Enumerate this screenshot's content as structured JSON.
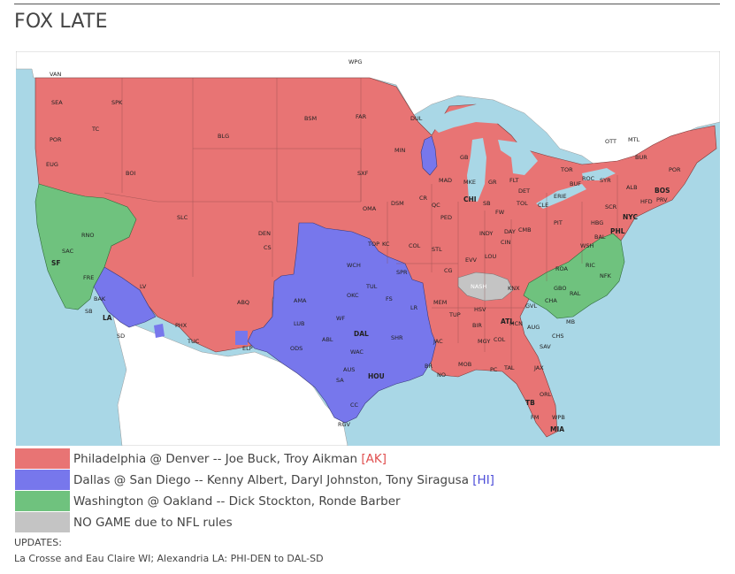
{
  "page": {
    "title": "FOX LATE"
  },
  "colors": {
    "red": "#e87474",
    "blue": "#7777ec",
    "green": "#6fc27e",
    "gray": "#c4c4c4",
    "water": "#a9d7e6",
    "land": "#ffffff",
    "border": "#6b4444"
  },
  "legend": [
    {
      "game": "Philadelphia @ Denver",
      "sep": " -- ",
      "announcers": "Joe Buck, Troy Aikman",
      "tag": "[AK]",
      "color": "#e87474"
    },
    {
      "game": "Dallas @ San Diego",
      "sep": " -- ",
      "announcers": "Kenny Albert, Daryl Johnston, Tony Siragusa",
      "tag": "[HI]",
      "color": "#7777ec"
    },
    {
      "game": "Washington @ Oakland",
      "sep": " -- ",
      "announcers": "Dick Stockton, Ronde Barber",
      "tag": "",
      "color": "#6fc27e"
    },
    {
      "game": "NO GAME due to NFL rules",
      "sep": "",
      "announcers": "",
      "tag": "",
      "color": "#c4c4c4"
    }
  ],
  "updates": {
    "heading": "UPDATES:",
    "text": "La Crosse and Eau Claire WI; Alexandria LA: PHI-DEN to DAL-SD"
  },
  "cities": [
    "VAN",
    "WPG",
    "SEA",
    "SPK",
    "POR",
    "TC",
    "EUG",
    "BOI",
    "BSM",
    "FAR",
    "DUL",
    "BLG",
    "OTT",
    "MTL",
    "MIN",
    "GB",
    "MAD",
    "MKE",
    "GR",
    "FLT",
    "DET",
    "TOR",
    "ROC",
    "SYR",
    "BUR",
    "POR",
    "BOS",
    "PRV",
    "ALB",
    "HFD",
    "NYC",
    "ERIE",
    "BUF",
    "CLE",
    "TOL",
    "SB",
    "FW",
    "CHI",
    "DSM",
    "QC",
    "CR",
    "OMA",
    "SXF",
    "SLC",
    "RNO",
    "SAC",
    "SF",
    "FRE",
    "BAK",
    "SB",
    "LA",
    "SD",
    "LV",
    "PHX",
    "TUC",
    "DEN",
    "CS",
    "ABQ",
    "ELP",
    "AMA",
    "LUB",
    "ODS",
    "ABL",
    "WF",
    "OKC",
    "TUL",
    "FS",
    "LR",
    "DAL",
    "WAC",
    "SHR",
    "AUS",
    "SA",
    "HOU",
    "CC",
    "RGV",
    "TOP",
    "KC",
    "WCH",
    "COL",
    "SPR",
    "PED",
    "STL",
    "CG",
    "EVV",
    "INDY",
    "DAY",
    "CIN",
    "CMB",
    "LOU",
    "NASH",
    "KNX",
    "CHA",
    "ROA",
    "RIC",
    "NFK",
    "HBG",
    "BAL",
    "WSH",
    "PHL",
    "SCR",
    "PIT",
    "MEM",
    "TUP",
    "HSV",
    "ATL",
    "BIR",
    "MGY",
    "COL",
    "MCN",
    "AUG",
    "SAV",
    "CHS",
    "MB",
    "GVL",
    "GBO",
    "RAL",
    "JAC",
    "BR",
    "NO",
    "MOB",
    "PC",
    "TAL",
    "JAX",
    "ORL",
    "TB",
    "FM",
    "WPB",
    "MIA"
  ]
}
